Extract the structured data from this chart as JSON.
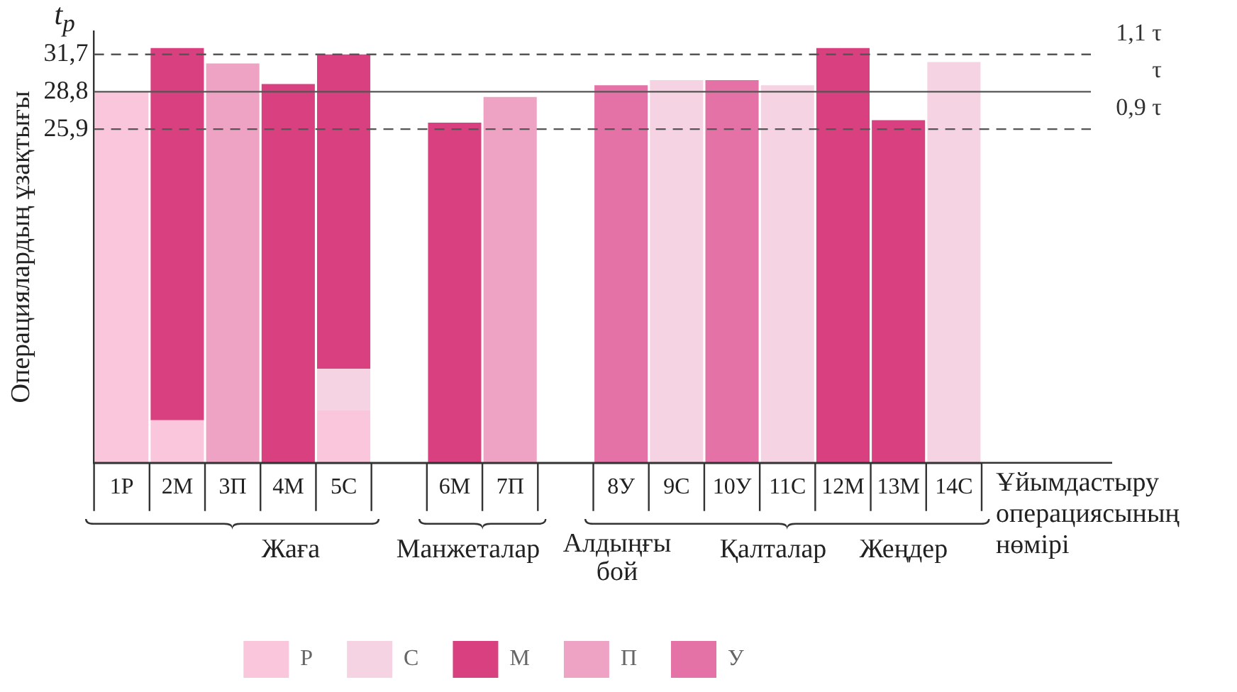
{
  "chart_data": {
    "type": "bar",
    "stacked": true,
    "ylabel": "Операциялардың ұзақтығы",
    "xlabel": "Ұйымдастыру операциясының нөмірі",
    "categories": [
      "1Р",
      "2М",
      "3П",
      "4М",
      "5С",
      null,
      "6М",
      "7П",
      null,
      "8У",
      "9С",
      "10У",
      "11С",
      "12М",
      "13М",
      "14С"
    ],
    "series": [
      {
        "name": "Р",
        "color": "#f9c6dc",
        "values": [
          28.8,
          3.3,
          null,
          null,
          4.1,
          null,
          null,
          null,
          null,
          null,
          null,
          null,
          null,
          null,
          null,
          null
        ]
      },
      {
        "name": "С",
        "color": "#f6d3e3",
        "values": [
          null,
          null,
          null,
          null,
          3.2,
          null,
          null,
          null,
          null,
          null,
          29.7,
          null,
          29.3,
          null,
          null,
          31.1
        ]
      },
      {
        "name": "М",
        "color": "#d9407f",
        "values": [
          null,
          28.9,
          null,
          29.4,
          24.4,
          null,
          26.4,
          null,
          null,
          null,
          null,
          null,
          null,
          32.2,
          26.6,
          null
        ]
      },
      {
        "name": "П",
        "color": "#eea3c4",
        "values": [
          null,
          null,
          31.0,
          null,
          null,
          null,
          null,
          28.4,
          null,
          null,
          null,
          null,
          null,
          null,
          null,
          null
        ]
      },
      {
        "name": "У",
        "color": "#e572a6",
        "values": [
          null,
          null,
          null,
          null,
          null,
          null,
          null,
          null,
          null,
          29.3,
          null,
          29.7,
          null,
          null,
          null,
          null
        ]
      }
    ],
    "ylim": [
      0,
      33.5
    ],
    "yticks": [
      {
        "value": 25.9,
        "label": "25,9"
      },
      {
        "value": 28.8,
        "label": "28,8"
      },
      {
        "value": 31.7,
        "label": "31,7"
      }
    ],
    "ref_lines": [
      {
        "axis": "y",
        "value": 31.7,
        "label": "1,1 τ",
        "color": "#555555",
        "line_style": "dashed"
      },
      {
        "axis": "y",
        "value": 28.8,
        "label": "τ",
        "color": "#555555",
        "line_style": "solid"
      },
      {
        "axis": "y",
        "value": 25.9,
        "label": "0,9 τ",
        "color": "#555555",
        "line_style": "dashed"
      }
    ],
    "annotations": [
      "t$_{p}$",
      "Жаға",
      "Манжеталар",
      "Алдыңғы бой",
      "Қалталар",
      "Жеңдер"
    ],
    "grid": false,
    "legend": "bottom"
  }
}
